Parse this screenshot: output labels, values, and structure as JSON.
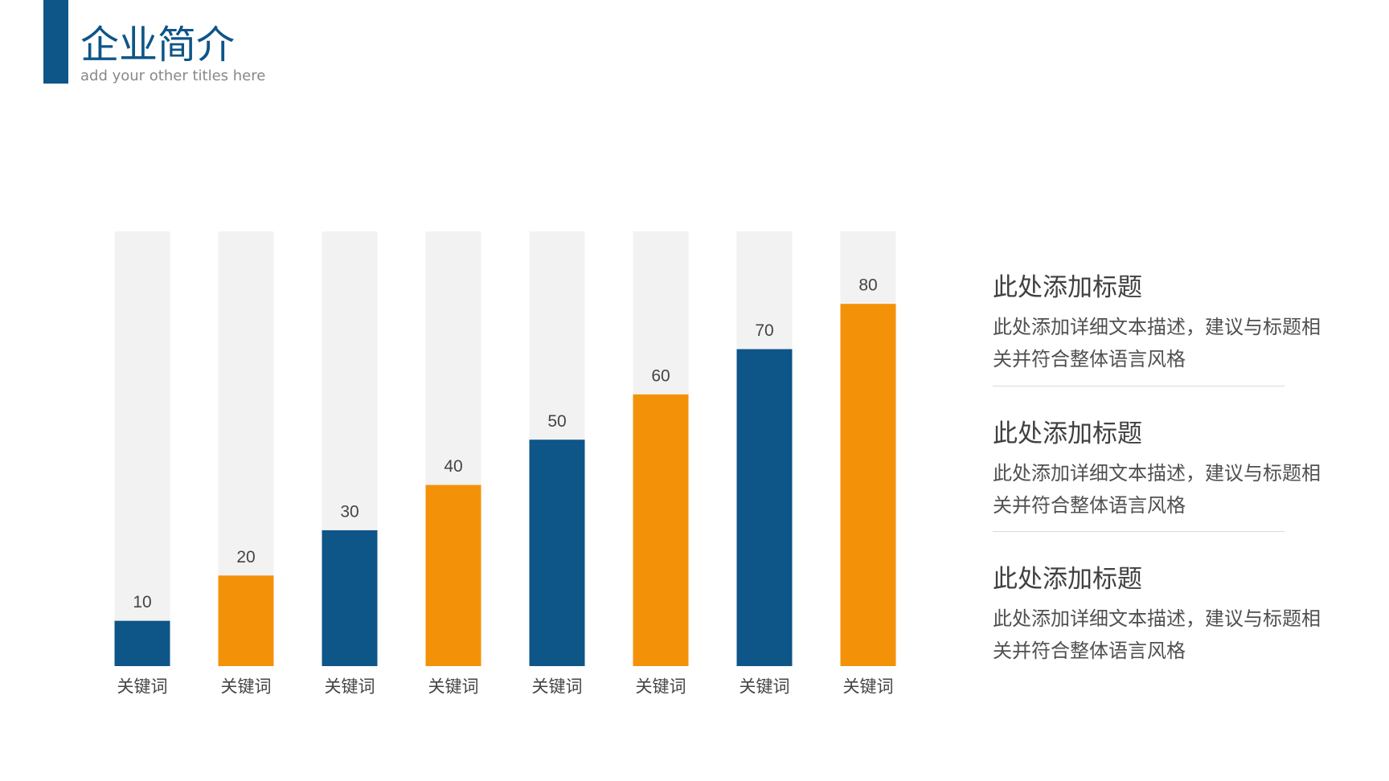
{
  "header": {
    "title": "企业简介",
    "subtitle": "add your other titles here"
  },
  "chart_data": {
    "type": "bar",
    "categories": [
      "关键词",
      "关键词",
      "关键词",
      "关键词",
      "关键词",
      "关键词",
      "关键词",
      "关键词"
    ],
    "values": [
      10,
      20,
      30,
      40,
      50,
      60,
      70,
      80
    ],
    "colors": [
      "#0e5588",
      "#f39208",
      "#0e5588",
      "#f39208",
      "#0e5588",
      "#f39208",
      "#0e5588",
      "#f39208"
    ],
    "ylim": [
      0,
      96
    ]
  },
  "items": [
    {
      "title": "此处添加标题",
      "text": "此处添加详细文本描述，建议与标题相关并符合整体语言风格"
    },
    {
      "title": "此处添加标题",
      "text": "此处添加详细文本描述，建议与标题相关并符合整体语言风格"
    },
    {
      "title": "此处添加标题",
      "text": "此处添加详细文本描述，建议与标题相关并符合整体语言风格"
    }
  ]
}
